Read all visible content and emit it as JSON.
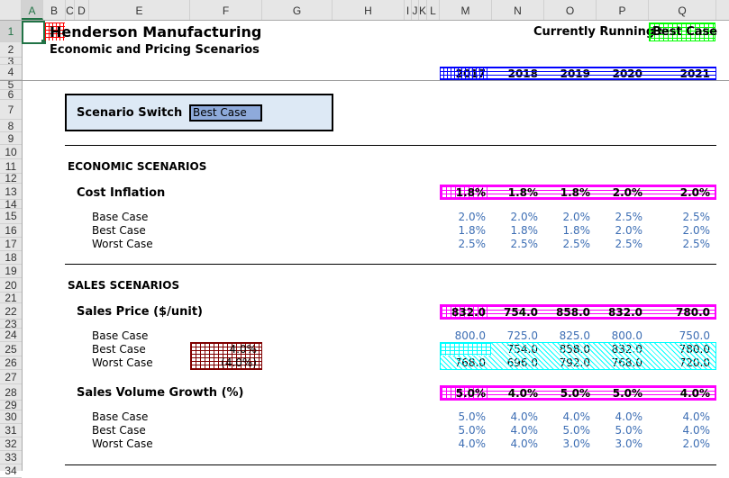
{
  "columns": [
    "A",
    "B",
    "C",
    "D",
    "E",
    "F",
    "G",
    "H",
    "I",
    "J",
    "K",
    "L",
    "M",
    "N",
    "O",
    "P",
    "Q"
  ],
  "header": {
    "title": "Henderson Manufacturing",
    "subtitle": "Economic and Pricing Scenarios",
    "running_label": "Currently Running :",
    "running_value": "Best Case"
  },
  "years": [
    "2017",
    "2018",
    "2019",
    "2020",
    "2021"
  ],
  "switch": {
    "label": "Scenario Switch",
    "value": "Best Case"
  },
  "economic": {
    "section": "ECONOMIC SCENARIOS",
    "title": "Cost Inflation",
    "live": [
      "1.8%",
      "1.8%",
      "1.8%",
      "2.0%",
      "2.0%"
    ],
    "rows": [
      {
        "label": "Base Case",
        "values": [
          "2.0%",
          "2.0%",
          "2.0%",
          "2.5%",
          "2.5%"
        ]
      },
      {
        "label": "Best Case",
        "values": [
          "1.8%",
          "1.8%",
          "1.8%",
          "2.0%",
          "2.0%"
        ]
      },
      {
        "label": "Worst Case",
        "values": [
          "2.5%",
          "2.5%",
          "2.5%",
          "2.5%",
          "2.5%"
        ]
      }
    ]
  },
  "sales": {
    "section": "SALES SCENARIOS",
    "price_title": "Sales Price ($/unit)",
    "price_live": [
      "832.0",
      "754.0",
      "858.0",
      "832.0",
      "780.0"
    ],
    "price_rows": [
      {
        "label": "Base Case",
        "values": [
          "800.0",
          "725.0",
          "825.0",
          "800.0",
          "750.0"
        ]
      },
      {
        "label": "Best Case",
        "adj": "4.0%",
        "values": [
          "832.0",
          "754.0",
          "858.0",
          "832.0",
          "780.0"
        ]
      },
      {
        "label": "Worst Case",
        "adj": "(4.0%)",
        "values": [
          "768.0",
          "696.0",
          "792.0",
          "768.0",
          "720.0"
        ]
      }
    ],
    "volume_title": "Sales Volume Growth (%)",
    "volume_live": [
      "5.0%",
      "4.0%",
      "5.0%",
      "5.0%",
      "4.0%"
    ],
    "volume_rows": [
      {
        "label": "Base Case",
        "values": [
          "5.0%",
          "4.0%",
          "4.0%",
          "4.0%",
          "4.0%"
        ]
      },
      {
        "label": "Best Case",
        "values": [
          "5.0%",
          "4.0%",
          "5.0%",
          "5.0%",
          "4.0%"
        ]
      },
      {
        "label": "Worst Case",
        "values": [
          "4.0%",
          "4.0%",
          "3.0%",
          "3.0%",
          "2.0%"
        ]
      }
    ]
  }
}
